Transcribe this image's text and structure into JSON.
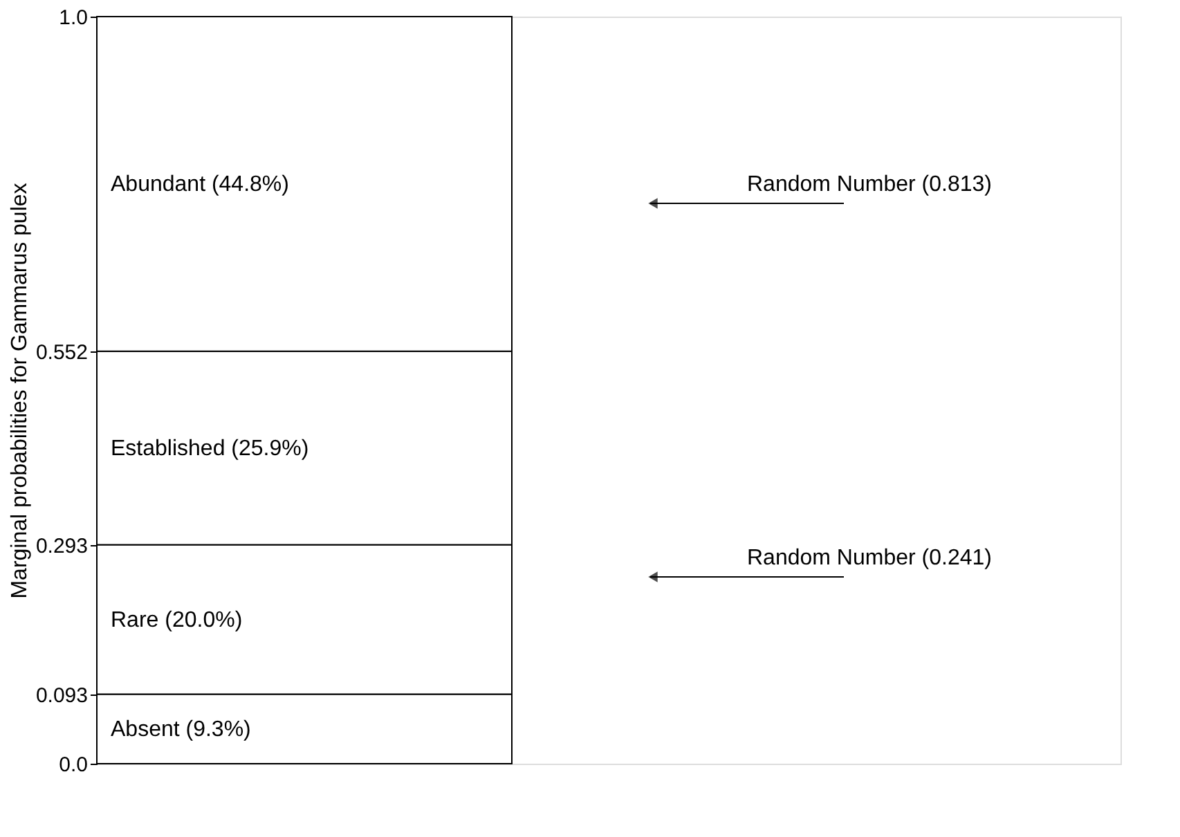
{
  "chart_data": {
    "type": "bar",
    "stacked": true,
    "categories": [
      null
    ],
    "series": [
      {
        "name": "Absent (9.3%)",
        "color": "#ffffff",
        "values": [
          0.093
        ]
      },
      {
        "name": "Rare (20.0%)",
        "color": "#ffffff",
        "values": [
          0.2
        ]
      },
      {
        "name": "Established (25.9%)",
        "color": "#ffffff",
        "values": [
          0.259
        ]
      },
      {
        "name": "Abundant (44.8%)",
        "color": "#ffffff",
        "values": [
          0.448
        ]
      }
    ],
    "ylabel": "Marginal probabilities for Gammarus pulex",
    "ylim": [
      0,
      1
    ],
    "yticks": [
      {
        "value": 0,
        "label": "0.0"
      },
      0.093,
      0.293,
      0.552,
      {
        "value": 1,
        "label": "1.0"
      }
    ],
    "annotations": [
      "Random Number (0.813)",
      "Random Number (0.241)"
    ]
  }
}
